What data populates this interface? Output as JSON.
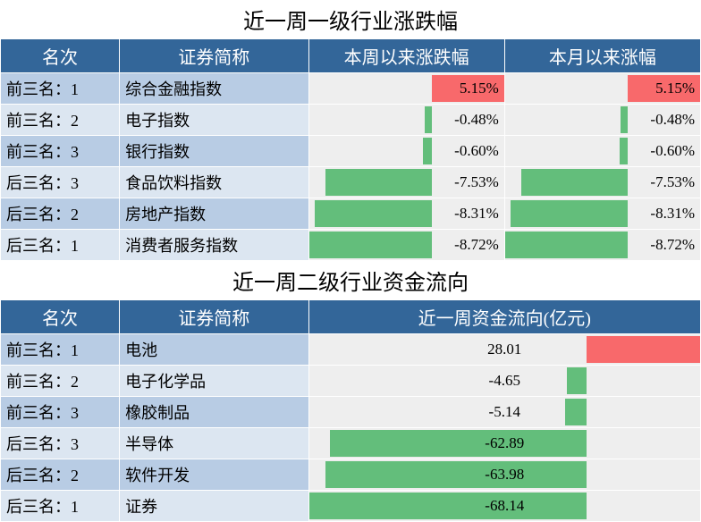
{
  "table1": {
    "title": "近一周一级行业涨跌幅",
    "headers": [
      "名次",
      "证券简称",
      "本周以来涨跌幅",
      "本月以来涨幅"
    ],
    "col_widths": [
      "17%",
      "27%",
      "28%",
      "28%"
    ],
    "header_bg": "#336699",
    "header_fg": "#ffffff",
    "row_odd_bg": "#b8cce4",
    "row_even_bg": "#dce6f1",
    "barcell_bg": "#eeeeee",
    "pos_color": "#f8696b",
    "neg_color": "#63be7b",
    "min": -8.72,
    "max": 5.15,
    "rows": [
      {
        "rank": "前三名：1",
        "name": "综合金融指数",
        "week": 5.15,
        "month": 5.15
      },
      {
        "rank": "前三名：2",
        "name": "电子指数",
        "week": -0.48,
        "month": -0.48
      },
      {
        "rank": "前三名：3",
        "name": "银行指数",
        "week": -0.6,
        "month": -0.6
      },
      {
        "rank": "后三名：3",
        "name": "食品饮料指数",
        "week": -7.53,
        "month": -7.53
      },
      {
        "rank": "后三名：2",
        "name": "房地产指数",
        "week": -8.31,
        "month": -8.31
      },
      {
        "rank": "后三名：1",
        "name": "消费者服务指数",
        "week": -8.72,
        "month": -8.72
      }
    ],
    "value_suffix": "%",
    "value_decimals": 2,
    "title_fontsize": 24,
    "header_fontsize": 20,
    "cell_fontsize": 18
  },
  "table2": {
    "title": "近一周二级行业资金流向",
    "headers": [
      "名次",
      "证券简称",
      "近一周资金流向(亿元)"
    ],
    "col_widths": [
      "17%",
      "27%",
      "56%"
    ],
    "header_bg": "#336699",
    "header_fg": "#ffffff",
    "row_odd_bg": "#b8cce4",
    "row_even_bg": "#dce6f1",
    "barcell_bg": "#eeeeee",
    "pos_color": "#f8696b",
    "neg_color": "#63be7b",
    "min": -68.14,
    "max": 28.01,
    "rows": [
      {
        "rank": "前三名：1",
        "name": "电池",
        "flow": 28.01
      },
      {
        "rank": "前三名：2",
        "name": "电子化学品",
        "flow": -4.65
      },
      {
        "rank": "前三名：3",
        "name": "橡胶制品",
        "flow": -5.14
      },
      {
        "rank": "后三名：3",
        "name": "半导体",
        "flow": -62.89
      },
      {
        "rank": "后三名：2",
        "name": "软件开发",
        "flow": -63.98
      },
      {
        "rank": "后三名：1",
        "name": "证券",
        "flow": -68.14
      }
    ],
    "value_suffix": "",
    "value_decimals": 2,
    "label_align": "center",
    "title_fontsize": 24,
    "header_fontsize": 20,
    "cell_fontsize": 18
  }
}
